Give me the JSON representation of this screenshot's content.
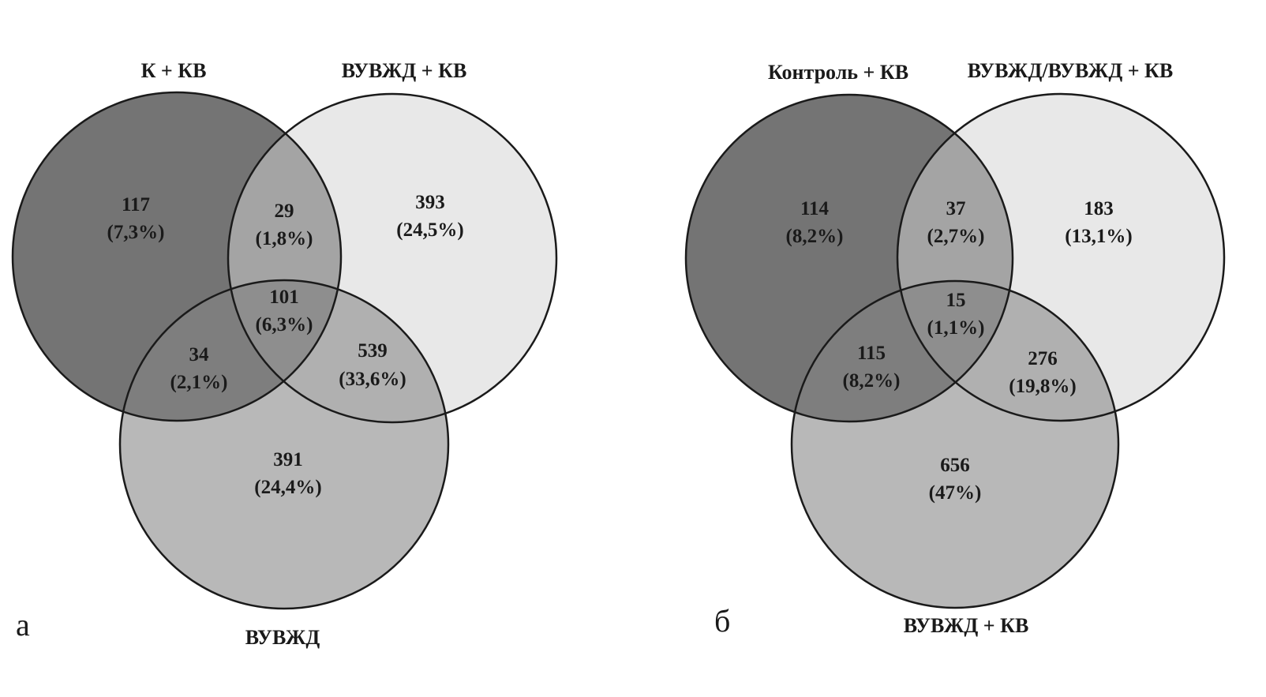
{
  "panels": [
    {
      "letter": "а",
      "sets": {
        "top_left": "К + КВ",
        "top_right": "ВУВЖД + КВ",
        "bottom": "ВУВЖД"
      },
      "regions": {
        "top_left_only": {
          "count": "117",
          "pct": "(7,3%)"
        },
        "top_left_top_right": {
          "count": "29",
          "pct": "(1,8%)"
        },
        "top_right_only": {
          "count": "393",
          "pct": "(24,5%)"
        },
        "all_three": {
          "count": "101",
          "pct": "(6,3%)"
        },
        "top_left_bottom": {
          "count": "34",
          "pct": "(2,1%)"
        },
        "top_right_bottom": {
          "count": "539",
          "pct": "(33,6%)"
        },
        "bottom_only": {
          "count": "391",
          "pct": "(24,4%)"
        }
      }
    },
    {
      "letter": "б",
      "sets": {
        "top_left": "Контроль + КВ",
        "top_right": "ВУВЖД/ВУВЖД + КВ",
        "bottom": "ВУВЖД + КВ"
      },
      "regions": {
        "top_left_only": {
          "count": "114",
          "pct": "(8,2%)"
        },
        "top_left_top_right": {
          "count": "37",
          "pct": "(2,7%)"
        },
        "top_right_only": {
          "count": "183",
          "pct": "(13,1%)"
        },
        "all_three": {
          "count": "15",
          "pct": "(1,1%)"
        },
        "top_left_bottom": {
          "count": "115",
          "pct": "(8,2%)"
        },
        "top_right_bottom": {
          "count": "276",
          "pct": "(19,8%)"
        },
        "bottom_only": {
          "count": "656",
          "pct": "(47%)"
        }
      }
    }
  ],
  "colors": {
    "set_top_left": "#747474",
    "set_top_right": "#e8e8e8",
    "set_bottom": "#b8b8b8",
    "outline": "#1a1a1a"
  }
}
